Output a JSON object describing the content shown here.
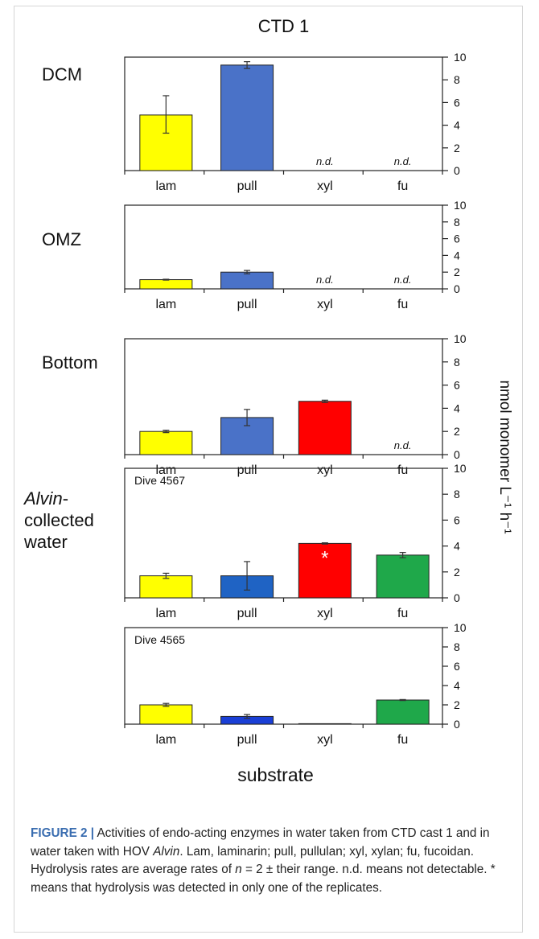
{
  "chart_data": [
    {
      "type": "bar",
      "title": "CTD 1",
      "panel_label": "DCM",
      "categories": [
        "lam",
        "pull",
        "xyl",
        "fu"
      ],
      "values": [
        4.9,
        9.3,
        0,
        0
      ],
      "error_range": [
        [
          3.3,
          6.6
        ],
        [
          9.0,
          9.6
        ],
        null,
        null
      ],
      "bar_colors": [
        "#ffff00",
        "#4a72c8",
        null,
        null
      ],
      "value_annotations": [
        null,
        null,
        "n.d.",
        "n.d."
      ],
      "ylim": [
        0,
        10
      ],
      "yticks": [
        0,
        2,
        4,
        6,
        8,
        10
      ],
      "grid": false
    },
    {
      "type": "bar",
      "panel_label": "OMZ",
      "categories": [
        "lam",
        "pull",
        "xyl",
        "fu"
      ],
      "values": [
        1.1,
        2.0,
        0,
        0
      ],
      "error_range": [
        [
          1.05,
          1.15
        ],
        [
          1.8,
          2.2
        ],
        null,
        null
      ],
      "bar_colors": [
        "#ffff00",
        "#4a72c8",
        null,
        null
      ],
      "value_annotations": [
        null,
        null,
        "n.d.",
        "n.d."
      ],
      "ylim": [
        0,
        10
      ],
      "yticks": [
        0,
        2,
        4,
        6,
        8,
        10
      ],
      "grid": false
    },
    {
      "type": "bar",
      "panel_label": "Bottom",
      "categories": [
        "lam",
        "pull",
        "xyl",
        "fu"
      ],
      "values": [
        2.0,
        3.2,
        4.6,
        0
      ],
      "error_range": [
        [
          1.9,
          2.1
        ],
        [
          2.5,
          3.9
        ],
        [
          4.5,
          4.7
        ],
        null
      ],
      "bar_colors": [
        "#ffff00",
        "#4a72c8",
        "#ff0000",
        null
      ],
      "value_annotations": [
        null,
        null,
        null,
        "n.d."
      ],
      "ylim": [
        0,
        10
      ],
      "yticks": [
        0,
        2,
        4,
        6,
        8,
        10
      ],
      "ylabel": "nmol monomer L⁻¹ h⁻¹",
      "grid": false
    },
    {
      "type": "bar",
      "panel_label_italic": "Alvin",
      "panel_label_lines": [
        "-",
        "collected",
        "water"
      ],
      "inset_label": "Dive 4567",
      "categories": [
        "lam",
        "pull",
        "xyl",
        "fu"
      ],
      "values": [
        1.7,
        1.7,
        4.2,
        3.3
      ],
      "error_range": [
        [
          1.5,
          1.9
        ],
        [
          0.6,
          2.8
        ],
        [
          4.15,
          4.25
        ],
        [
          3.1,
          3.5
        ]
      ],
      "bar_colors": [
        "#ffff00",
        "#1f63c4",
        "#ff0000",
        "#1fa84a"
      ],
      "bar_marks": [
        null,
        null,
        "*",
        null
      ],
      "ylim": [
        0,
        10
      ],
      "yticks": [
        0,
        2,
        4,
        6,
        8,
        10
      ],
      "grid": false
    },
    {
      "type": "bar",
      "inset_label": "Dive 4565",
      "categories": [
        "lam",
        "pull",
        "xyl",
        "fu"
      ],
      "values": [
        2.0,
        0.8,
        0.05,
        2.5
      ],
      "error_range": [
        [
          1.85,
          2.15
        ],
        [
          0.6,
          1.0
        ],
        null,
        [
          2.45,
          2.55
        ]
      ],
      "bar_colors": [
        "#ffff00",
        "#1a3fd6",
        "#3a55c0",
        "#1fa84a"
      ],
      "ylim": [
        0,
        10
      ],
      "yticks": [
        0,
        2,
        4,
        6,
        8,
        10
      ],
      "xlabel": "substrate",
      "grid": false
    }
  ],
  "caption": {
    "label": "FIGURE 2 |",
    "text_1": " Activities of endo-acting enzymes in water taken from CTD cast 1 and in water taken with HOV ",
    "italic_1": "Alvin",
    "text_2": ". Lam, laminarin; pull, pullulan; xyl, xylan; fu, fucoidan. Hydrolysis rates are average rates of ",
    "italic_2": "n",
    "text_3": " = 2 ± their range. n.d. means not detectable. * means that hydrolysis was detected in only one of the replicates."
  },
  "colors": {
    "axis": "#222222",
    "frame": "#d6d6d6",
    "caption_label": "#3a6db0"
  }
}
